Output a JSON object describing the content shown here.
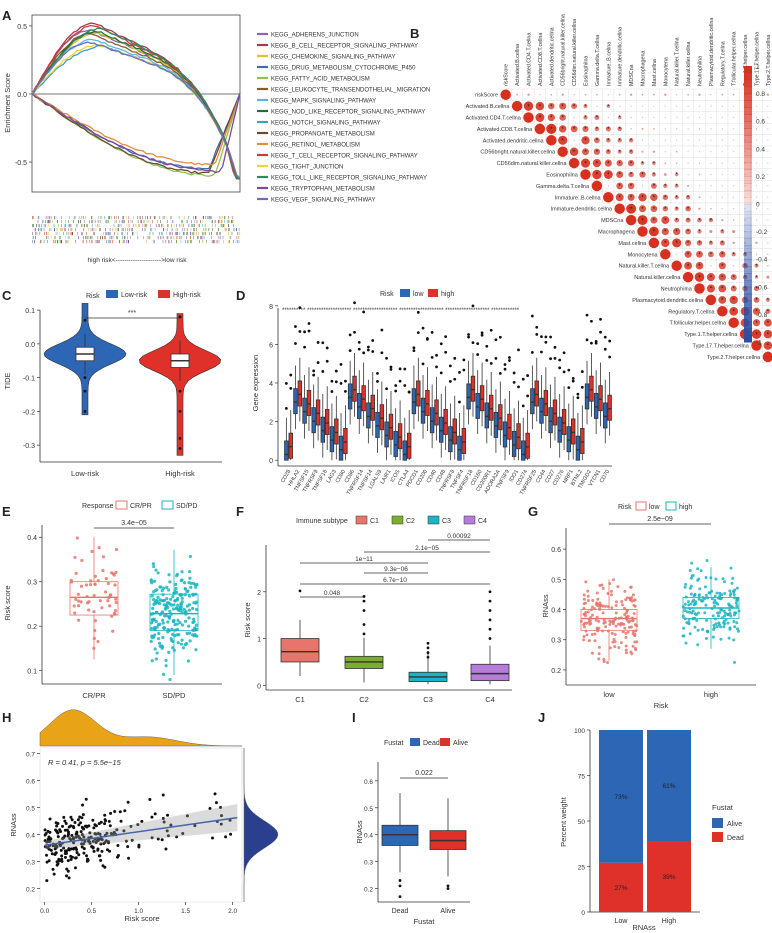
{
  "panels": {
    "A": {
      "label": "A",
      "ylabel": "Enrichment Score",
      "yticks": [
        "0.5",
        "0.0",
        "-0.5"
      ],
      "ylim": [
        -0.72,
        0.58
      ],
      "bottom_text": "high risk<--------------------->low risk",
      "pathways": [
        {
          "name": "KEGG_ADHERENS_JUNCTION",
          "color": "#8E63B5",
          "peak": 0.47
        },
        {
          "name": "KEGG_B_CELL_RECEPTOR_SIGNALING_PATHWAY",
          "color": "#A63A50",
          "peak": 0.52
        },
        {
          "name": "KEGG_CHEMOKINE_SIGNALING_PATHWAY",
          "color": "#E2C227",
          "peak": 0.45
        },
        {
          "name": "KEGG_DRUG_METABOLISM_CYTOCHROME_P450",
          "color": "#3E6DB5",
          "peak": -0.55
        },
        {
          "name": "KEGG_FATTY_ACID_METABOLISM",
          "color": "#8FC24A",
          "peak": -0.6
        },
        {
          "name": "KEGG_LEUKOCYTE_TRANSENDOTHELIAL_MIGRATION",
          "color": "#8A5A2B",
          "peak": 0.44
        },
        {
          "name": "KEGG_MAPK_SIGNALING_PATHWAY",
          "color": "#5CB4E0",
          "peak": 0.4
        },
        {
          "name": "KEGG_NOD_LIKE_RECEPTOR_SIGNALING_PATHWAY",
          "color": "#1E6F3E",
          "peak": 0.46
        },
        {
          "name": "KEGG_NOTCH_SIGNALING_PATHWAY",
          "color": "#3B9FCB",
          "peak": 0.35
        },
        {
          "name": "KEGG_PROPANOATE_METABOLISM",
          "color": "#6E4A2E",
          "peak": -0.58
        },
        {
          "name": "KEGG_RETINOL_METABOLISM",
          "color": "#E38D3A",
          "peak": -0.52
        },
        {
          "name": "KEGG_T_CELL_RECEPTOR_SIGNALING_PATHWAY",
          "color": "#D23A3A",
          "peak": 0.5
        },
        {
          "name": "KEGG_TIGHT_JUNCTION",
          "color": "#F2D33A",
          "peak": 0.36
        },
        {
          "name": "KEGG_TOLL_LIKE_RECEPTOR_SIGNALING_PATHWAY",
          "color": "#2B8A5A",
          "peak": 0.48
        },
        {
          "name": "KEGG_TRYPTOPHAN_METABOLISM",
          "color": "#7A4A9E",
          "peak": -0.57
        },
        {
          "name": "KEGG_VEGF_SIGNALING_PATHWAY",
          "color": "#6B6FB8",
          "peak": 0.38
        }
      ]
    },
    "B": {
      "label": "B",
      "vars": [
        "riskScore",
        "Activated.B.cellna",
        "Activated.CD4.T.cellna",
        "Activated.CD8.T.cellna",
        "Activated.dendritic.cellna",
        "CD56bright.natural.killer.cellna",
        "CD56dim.natural.killer.cellna",
        "Eosinophilna",
        "Gamma.delta.T.cellna",
        "Immature..B.cellna",
        "Immature.dendritic.cellna",
        "MDSCna",
        "Macrophagena",
        "Mast.cellna",
        "Monocytena",
        "Natural.killer.T.cellna",
        "Natural.killer.cellna",
        "Neutrophilna",
        "Plasmacytoid.dendritic.cellna",
        "Regulatory.T.cellna",
        "T.follicular.helper.cellna",
        "Type.1.T.helper.cellna",
        "Type.17.T.helper.cellna",
        "Type.2.T.helper.cellna"
      ],
      "colorbar_ticks": [
        "1",
        "0.8",
        "0.6",
        "0.4",
        "0.2",
        "0",
        "-0.2",
        "-0.4",
        "-0.6",
        "-0.8",
        "-1"
      ],
      "colors": {
        "pos": "#D7301F",
        "neg": "#2C4FA3"
      }
    },
    "C": {
      "label": "C",
      "legend_title": "Risk",
      "legend": [
        "Low-risk",
        "High-risk"
      ],
      "ylabel": "TIDE",
      "yticks": [
        "0.1",
        "0.0",
        "-0.1",
        "-0.2",
        "-0.3"
      ],
      "xticks": [
        "Low-risk",
        "High-risk"
      ],
      "signif": "***",
      "colors": [
        "#2C66B5",
        "#E0302A"
      ]
    },
    "D": {
      "label": "D",
      "legend_title": "Risk",
      "legend": [
        "low",
        "high"
      ],
      "ylabel": "Gene expression",
      "yticks": [
        "0",
        "2",
        "4",
        "6",
        "8"
      ],
      "genes": [
        "CD28",
        "HHLA2",
        "TNFSF15",
        "TNFRSF9",
        "TNFSF18",
        "LAG3",
        "CD80",
        "CD86",
        "TNFRSF14",
        "TNFSF14",
        "LGALS9",
        "LAIR1",
        "ICOS",
        "CTLA4",
        "PDCD1",
        "CD200",
        "CD40",
        "CD48",
        "TNFRSF8",
        "TNFSF4",
        "TNFRSF18",
        "CD160",
        "CD200R1",
        "ADORA2A",
        "TNFSF9",
        "IDO1",
        "CD274",
        "TNFRSF25",
        "CD44",
        "CD27",
        "CD276",
        "NRP1",
        "BTNL2",
        "TMIGD2",
        "VTCN1",
        "CD70"
      ],
      "colors": [
        "#2C66B5",
        "#E0302A"
      ]
    },
    "E": {
      "label": "E",
      "legend_title": "Response",
      "legend": [
        "CR/PR",
        "SD/PD"
      ],
      "ylabel": "Risk score",
      "yticks": [
        "0.4",
        "0.3",
        "0.2",
        "0.1"
      ],
      "xticks": [
        "CR/PR",
        "SD/PD"
      ],
      "pvalue": "3.4e−05",
      "colors": [
        "#E8756B",
        "#1AB5C2"
      ]
    },
    "F": {
      "label": "F",
      "legend_title": "Immune subtype",
      "legend": [
        "C1",
        "C2",
        "C3",
        "C4"
      ],
      "ylabel": "Risk score",
      "yticks": [
        "2",
        "1",
        "0"
      ],
      "xticks": [
        "C1",
        "C2",
        "C3",
        "C4"
      ],
      "pvalues": [
        "0.00092",
        "2.1e−05",
        "1e−11",
        "9.3e−06",
        "6.7e−10",
        "0.048"
      ],
      "colors": [
        "#E8756B",
        "#7CAE2E",
        "#1AB5C2",
        "#B77BD9"
      ]
    },
    "G": {
      "label": "G",
      "legend_title": "Risk",
      "legend": [
        "low",
        "high"
      ],
      "ylabel": "RNAss",
      "xlabel": "Risk",
      "yticks": [
        "0.6",
        "0.5",
        "0.4",
        "0.3",
        "0.2"
      ],
      "xticks": [
        "low",
        "high"
      ],
      "pvalue": "2.5e−09",
      "colors": [
        "#E8756B",
        "#1AB5C2"
      ]
    },
    "H": {
      "label": "H",
      "annotation": "R = 0.41, p = 5.5e−15",
      "ylabel": "RNAss",
      "xlabel": "Risk score",
      "yticks": [
        "0.7",
        "0.6",
        "0.5",
        "0.4",
        "0.3",
        "0.2"
      ],
      "xticks": [
        "0.0",
        "0.5",
        "1.0",
        "1.5",
        "2.0"
      ],
      "colors": {
        "density": "#E8A317",
        "density_right": "#2B3F8F",
        "line": "#4466A8"
      }
    },
    "I": {
      "label": "I",
      "legend_title": "Fustat",
      "legend": [
        "Dead",
        "Alive"
      ],
      "ylabel": "RNAss",
      "xlabel": "Fustat",
      "yticks": [
        "0.6",
        "0.5",
        "0.4",
        "0.3",
        "0.2"
      ],
      "xticks": [
        "Dead",
        "Alive"
      ],
      "pvalue": "0.022",
      "colors": [
        "#2C66B5",
        "#E0302A"
      ]
    },
    "J": {
      "label": "J",
      "legend_title": "Fustat",
      "legend": [
        "Alive",
        "Dead"
      ],
      "ylabel": "Percent weight",
      "xlabel": "RNAss",
      "yticks": [
        "100",
        "75",
        "50",
        "25",
        "0"
      ],
      "xticks": [
        "Low",
        "High"
      ],
      "colors": [
        "#2C66B5",
        "#E0302A"
      ]
    }
  },
  "chart_data": [
    {
      "type": "line",
      "panel": "A",
      "title": "",
      "ylabel": "Enrichment Score",
      "ylim": [
        -0.72,
        0.58
      ],
      "series": [
        {
          "name": "KEGG_ADHERENS_JUNCTION",
          "peak": 0.47
        },
        {
          "name": "KEGG_B_CELL_RECEPTOR_SIGNALING_PATHWAY",
          "peak": 0.52
        },
        {
          "name": "KEGG_CHEMOKINE_SIGNALING_PATHWAY",
          "peak": 0.45
        },
        {
          "name": "KEGG_DRUG_METABOLISM_CYTOCHROME_P450",
          "peak": -0.55
        },
        {
          "name": "KEGG_FATTY_ACID_METABOLISM",
          "peak": -0.6
        },
        {
          "name": "KEGG_LEUKOCYTE_TRANSENDOTHELIAL_MIGRATION",
          "peak": 0.44
        },
        {
          "name": "KEGG_MAPK_SIGNALING_PATHWAY",
          "peak": 0.4
        },
        {
          "name": "KEGG_NOD_LIKE_RECEPTOR_SIGNALING_PATHWAY",
          "peak": 0.46
        },
        {
          "name": "KEGG_NOTCH_SIGNALING_PATHWAY",
          "peak": 0.35
        },
        {
          "name": "KEGG_PROPANOATE_METABOLISM",
          "peak": -0.58
        },
        {
          "name": "KEGG_RETINOL_METABOLISM",
          "peak": -0.52
        },
        {
          "name": "KEGG_T_CELL_RECEPTOR_SIGNALING_PATHWAY",
          "peak": 0.5
        },
        {
          "name": "KEGG_TIGHT_JUNCTION",
          "peak": 0.36
        },
        {
          "name": "KEGG_TOLL_LIKE_RECEPTOR_SIGNALING_PATHWAY",
          "peak": 0.48
        },
        {
          "name": "KEGG_TRYPTOPHAN_METABOLISM",
          "peak": -0.57
        },
        {
          "name": "KEGG_VEGF_SIGNALING_PATHWAY",
          "peak": 0.38
        }
      ]
    },
    {
      "type": "heatmap",
      "panel": "B",
      "title": "",
      "colorbar_range": [
        -1,
        1
      ]
    },
    {
      "type": "box",
      "panel": "C",
      "ylabel": "TIDE",
      "categories": [
        "Low-risk",
        "High-risk"
      ],
      "medians": [
        -0.03,
        -0.05
      ],
      "q1": [
        -0.05,
        -0.07
      ],
      "q3": [
        -0.01,
        -0.03
      ],
      "ylim": [
        -0.35,
        0.13
      ]
    },
    {
      "type": "box",
      "panel": "D",
      "ylabel": "Gene expression",
      "series": [
        {
          "name": "low"
        },
        {
          "name": "high"
        }
      ]
    },
    {
      "type": "box",
      "panel": "E",
      "ylabel": "Risk score",
      "categories": [
        "CR/PR",
        "SD/PD"
      ],
      "medians": [
        0.265,
        0.228
      ],
      "q1": [
        0.225,
        0.19
      ],
      "q3": [
        0.3,
        0.272
      ],
      "ylim": [
        0.07,
        0.45
      ]
    },
    {
      "type": "box",
      "panel": "F",
      "ylabel": "Risk score",
      "categories": [
        "C1",
        "C2",
        "C3",
        "C4"
      ],
      "medians": [
        0.72,
        0.5,
        0.18,
        0.25
      ],
      "q1": [
        0.5,
        0.36,
        0.08,
        0.1
      ],
      "q3": [
        1.0,
        0.62,
        0.28,
        0.45
      ],
      "ylim": [
        -0.1,
        3.0
      ]
    },
    {
      "type": "box",
      "panel": "G",
      "ylabel": "RNAss",
      "xlabel": "Risk",
      "categories": [
        "low",
        "high"
      ],
      "medians": [
        0.37,
        0.405
      ],
      "q1": [
        0.33,
        0.37
      ],
      "q3": [
        0.4,
        0.44
      ],
      "ylim": [
        0.15,
        0.67
      ]
    },
    {
      "type": "scatter",
      "panel": "H",
      "xlabel": "Risk score",
      "ylabel": "RNAss",
      "xlim": [
        -0.05,
        2.1
      ],
      "ylim": [
        0.15,
        0.72
      ],
      "fit": {
        "intercept": 0.36,
        "slope": 0.05
      },
      "R": 0.41,
      "p": "5.5e-15"
    },
    {
      "type": "box",
      "panel": "I",
      "ylabel": "RNAss",
      "xlabel": "Fustat",
      "categories": [
        "Dead",
        "Alive"
      ],
      "medians": [
        0.4,
        0.378
      ],
      "q1": [
        0.36,
        0.345
      ],
      "q3": [
        0.435,
        0.415
      ],
      "ylim": [
        0.15,
        0.67
      ]
    },
    {
      "type": "bar",
      "panel": "J",
      "ylabel": "Percent weight",
      "xlabel": "RNAss",
      "categories": [
        "Low",
        "High"
      ],
      "series": [
        {
          "name": "Alive",
          "values": [
            73,
            61
          ]
        },
        {
          "name": "Dead",
          "values": [
            27,
            39
          ]
        }
      ],
      "ylim": [
        0,
        100
      ]
    }
  ]
}
